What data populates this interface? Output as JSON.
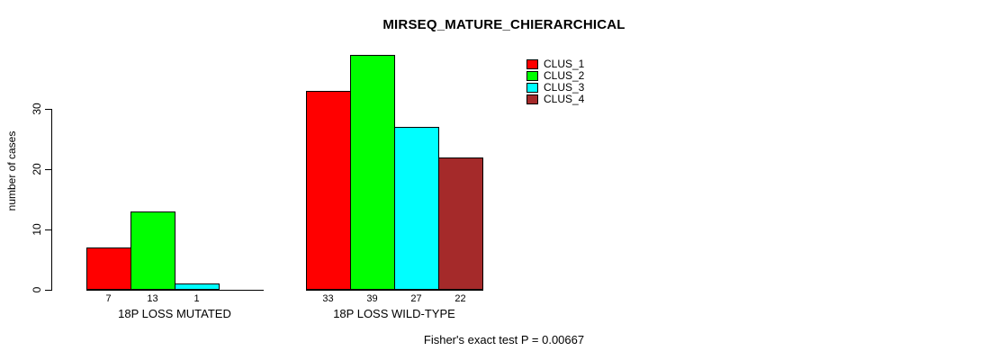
{
  "chart_data": {
    "type": "bar",
    "title": "MIRSEQ_MATURE_CHIERARCHICAL",
    "ylabel": "number of cases",
    "xlabel": "",
    "yticks": [
      0,
      10,
      20,
      30
    ],
    "ylim": [
      0,
      39
    ],
    "grid": false,
    "legend_position": "top-right",
    "categories": [
      "18P LOSS MUTATED",
      "18P LOSS WILD-TYPE"
    ],
    "series": [
      {
        "name": "CLUS_1",
        "color": "#FF0000",
        "values": [
          7,
          33
        ]
      },
      {
        "name": "CLUS_2",
        "color": "#00FF00",
        "values": [
          13,
          39
        ]
      },
      {
        "name": "CLUS_3",
        "color": "#00FFFF",
        "values": [
          1,
          27
        ]
      },
      {
        "name": "CLUS_4",
        "color": "#A52A2A",
        "values": [
          0,
          22
        ]
      }
    ],
    "bar_value_labels": [
      [
        "7",
        "13",
        "1",
        ""
      ],
      [
        "33",
        "39",
        "27",
        "22"
      ]
    ],
    "footer": "Fisher's exact test P = 0.00667"
  }
}
